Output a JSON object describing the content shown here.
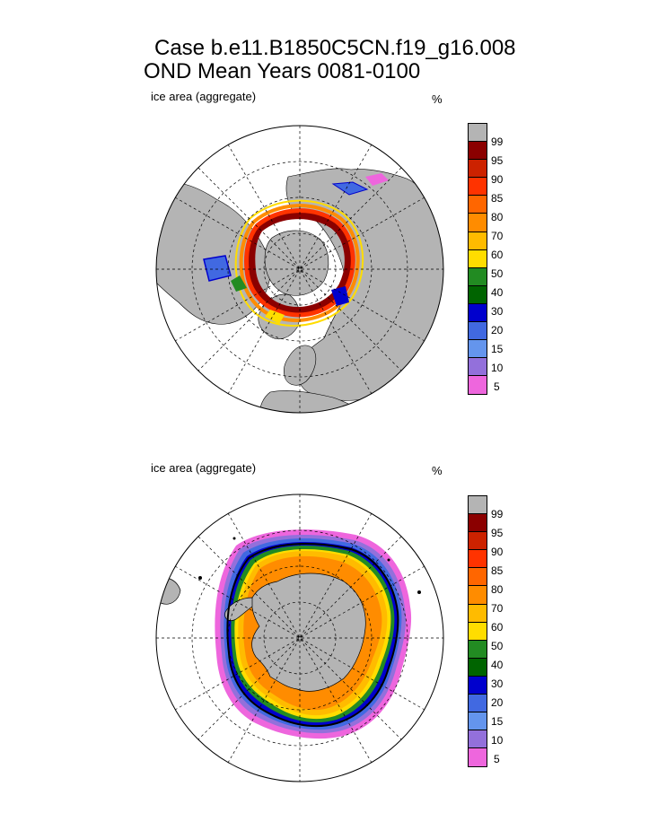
{
  "title_line1": "Case b.e11.B1850C5CN.f19_g16.008",
  "title_line2": "OND Mean   Years 0081-0100",
  "colors": {
    "land": "#b4b4b4",
    "c100": "#b4b4b4",
    "c99": "#8b0000",
    "c95": "#cc2200",
    "c90": "#ff3300",
    "c85": "#ff6600",
    "c80": "#ff8c00",
    "c70": "#ffbb00",
    "c60": "#ffdd00",
    "c50": "#228b22",
    "c40": "#006400",
    "c30": "#0000cd",
    "c20": "#4169e1",
    "c15": "#6495ed",
    "c10": "#9370db",
    "c5": "#ee66dd"
  },
  "panels": [
    {
      "name": "north",
      "var_label": "ice area  (aggregate)",
      "unit": "%",
      "colorbar_ticks": [
        "99",
        "95",
        "90",
        "85",
        "80",
        "70",
        "60",
        "50",
        "40",
        "30",
        "20",
        "15",
        "10",
        "5"
      ]
    },
    {
      "name": "south",
      "var_label": "ice area  (aggregate)",
      "unit": "%",
      "colorbar_ticks": [
        "99",
        "95",
        "90",
        "85",
        "80",
        "70",
        "60",
        "50",
        "40",
        "30",
        "20",
        "15",
        "10",
        "5"
      ]
    }
  ]
}
